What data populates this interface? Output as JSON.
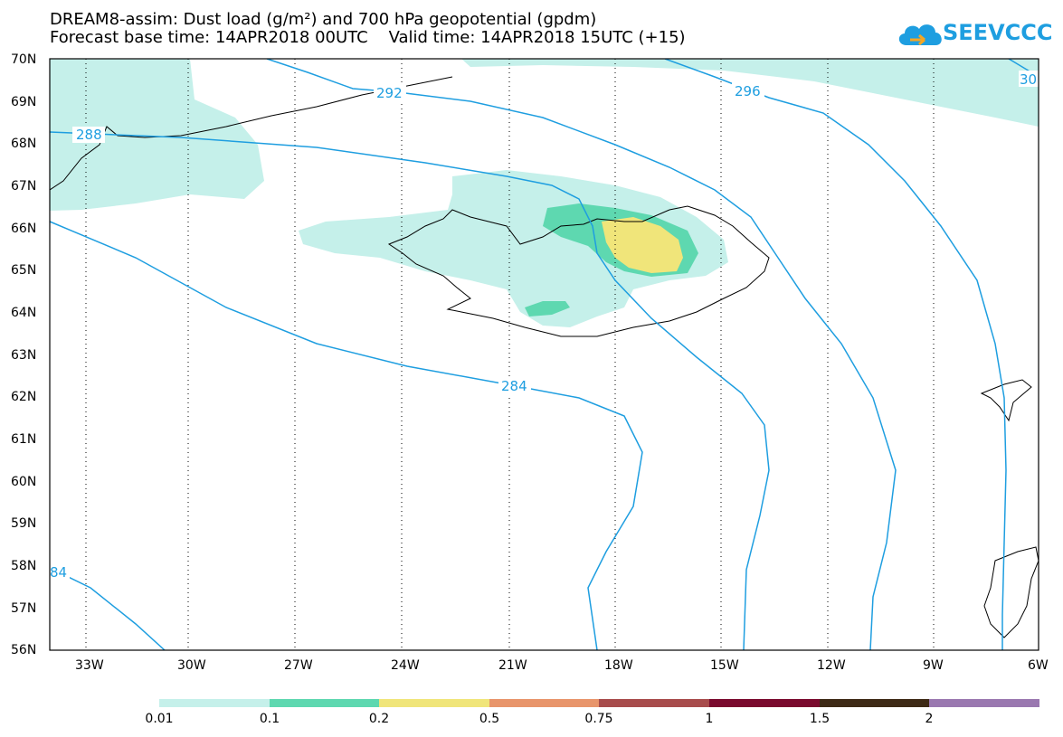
{
  "title": {
    "line1": "DREAM8-assim: Dust load (g/m²) and 700 hPa geopotential (gpdm)",
    "line2_base": "Forecast base time: 14APR2018 00UTC",
    "line2_valid": "Valid time: 14APR2018 15UTC (+15)"
  },
  "logo": {
    "text": "SEEVCCC",
    "color": "#1e9ee0"
  },
  "axes": {
    "lat_labels": [
      "70N",
      "69N",
      "68N",
      "67N",
      "66N",
      "65N",
      "64N",
      "63N",
      "62N",
      "61N",
      "60N",
      "59N",
      "58N",
      "57N",
      "56N"
    ],
    "lon_labels": [
      "33W",
      "30W",
      "27W",
      "24W",
      "21W",
      "18W",
      "15W",
      "12W",
      "9W",
      "6W"
    ]
  },
  "contour_labels": {
    "c292": "292",
    "c296": "296",
    "c288": "288",
    "c284": "284",
    "c84": "84",
    "c30": "30"
  },
  "colors": {
    "contour": "#1e9ee0",
    "dust_001": "#c5f0ea",
    "dust_01": "#5ed8b0",
    "dust_02": "#f0e57a",
    "coast": "#000000"
  },
  "colorbar": {
    "labels": [
      "0.01",
      "0.1",
      "0.2",
      "0.5",
      "0.75",
      "1",
      "1.5",
      "2"
    ],
    "colors": [
      "#c5f0ea",
      "#5ed8b0",
      "#f0e57a",
      "#e8956b",
      "#a84c4c",
      "#7a0a2e",
      "#3e2a16",
      "#9a78b0"
    ]
  }
}
